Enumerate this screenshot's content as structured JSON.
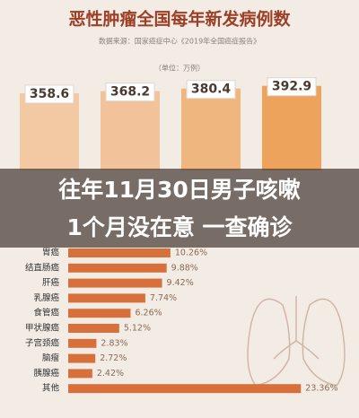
{
  "headline": {
    "lines": [
      "往年11月30日男子咳嗽",
      "1个月没在意 一查确诊"
    ]
  },
  "chart_data": [
    {
      "type": "bar",
      "title": "恶性肿瘤全国每年新发病例数",
      "subtitle": "数据来源：国家癌症中心《2019年全国癌症报告》",
      "unit": "（单位：万例）",
      "categories": [
        null,
        null,
        null,
        null
      ],
      "values": [
        358.6,
        368.2,
        380.4,
        392.9
      ],
      "colors": [
        "#f2c9a2",
        "#f2c39a",
        "#f0b67f",
        "#eda35c"
      ]
    },
    {
      "type": "barh",
      "categories": [
        "胃癌",
        "结直肠癌",
        "肝癌",
        "乳腺癌",
        "食管癌",
        "甲状腺癌",
        "子宫颈癌",
        "脑瘤",
        "胰腺癌",
        "其他"
      ],
      "values": [
        10.26,
        9.88,
        9.42,
        7.74,
        6.26,
        5.12,
        2.83,
        2.72,
        2.42,
        23.36
      ],
      "value_labels": [
        "10.26%",
        "9.88%",
        "9.42%",
        "7.74%",
        "6.26%",
        "5.12%",
        "2.83%",
        "2.72%",
        "2.42%",
        "23.36%"
      ],
      "color": "#d8703c"
    }
  ]
}
